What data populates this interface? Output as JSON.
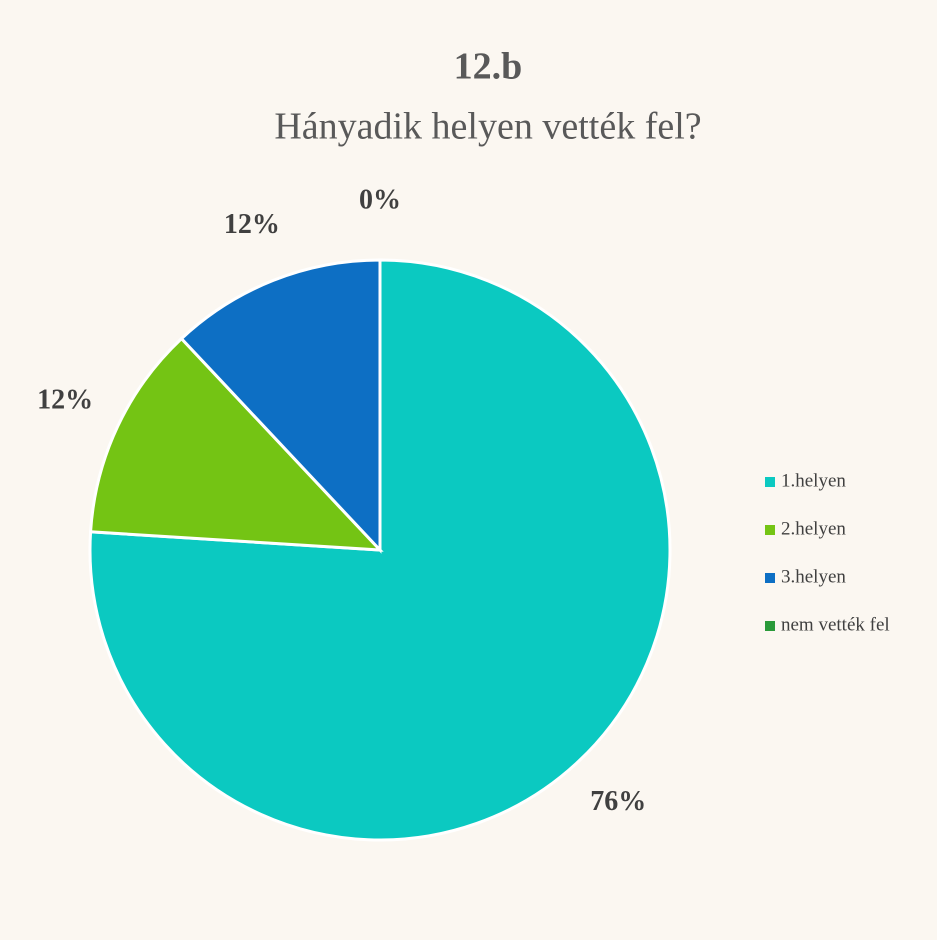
{
  "chart_data": {
    "type": "pie",
    "title": "12.b",
    "subtitle": "Hányadik helyen vették fel?",
    "categories": [
      "1.helyen",
      "2.helyen",
      "3.helyen",
      "nem vették fel"
    ],
    "values": [
      76,
      12,
      12,
      0
    ],
    "value_labels": [
      "76%",
      "12%",
      "12%",
      "0%"
    ],
    "colors": [
      "#0bc9c1",
      "#74c414",
      "#0d6fc4",
      "#2a9a3a"
    ],
    "legend": "right"
  }
}
